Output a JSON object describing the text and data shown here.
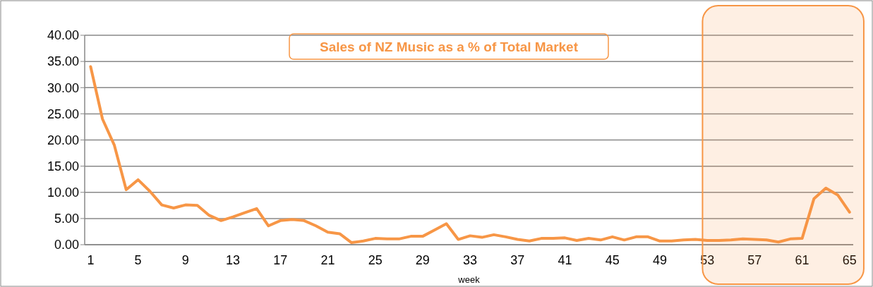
{
  "chart_data": {
    "type": "line",
    "title": "Sales of NZ Music as a % of Total Market",
    "xlabel": "week",
    "x": [
      1,
      2,
      3,
      4,
      5,
      6,
      7,
      8,
      9,
      10,
      11,
      12,
      13,
      14,
      15,
      16,
      17,
      18,
      19,
      20,
      21,
      22,
      23,
      24,
      25,
      26,
      27,
      28,
      29,
      30,
      31,
      32,
      33,
      34,
      35,
      36,
      37,
      38,
      39,
      40,
      41,
      42,
      43,
      44,
      45,
      46,
      47,
      48,
      49,
      50,
      51,
      52,
      53,
      54,
      55,
      56,
      57,
      58,
      59,
      60,
      61,
      62,
      63,
      64,
      65
    ],
    "series": [
      {
        "color": "#f79646",
        "values": [
          34,
          24,
          19,
          10.5,
          12.4,
          10.2,
          7.6,
          7,
          7.6,
          7.5,
          5.6,
          4.6,
          5.3,
          6.1,
          6.9,
          3.6,
          4.6,
          4.8,
          4.6,
          3.6,
          2.4,
          2.1,
          0.4,
          0.7,
          1.2,
          1.1,
          1.1,
          1.6,
          1.6,
          2.8,
          4.0,
          1.0,
          1.7,
          1.4,
          1.9,
          1.5,
          1.0,
          0.7,
          1.2,
          1.2,
          1.3,
          0.8,
          1.2,
          0.9,
          1.5,
          0.9,
          1.5,
          1.5,
          0.7,
          0.7,
          0.9,
          1.0,
          0.8,
          0.8,
          0.9,
          1.1,
          1.0,
          0.9,
          0.5,
          1.1,
          1.2,
          8.8,
          10.8,
          9.5,
          6.2
        ]
      }
    ],
    "xlim": [
      0.5,
      66.5
    ],
    "xticks": [
      1,
      5,
      9,
      13,
      17,
      21,
      25,
      29,
      33,
      37,
      41,
      45,
      49,
      53,
      57,
      61,
      65
    ],
    "ylim": [
      0,
      40
    ],
    "yticks": [
      {
        "value": 0,
        "label": "0.00"
      },
      {
        "value": 5,
        "label": "5.00"
      },
      {
        "value": 10,
        "label": "10.00"
      },
      {
        "value": 15,
        "label": "15.00"
      },
      {
        "value": 20,
        "label": "20.00"
      },
      {
        "value": 25,
        "label": "25.00"
      },
      {
        "value": 30,
        "label": "30.00"
      },
      {
        "value": 35,
        "label": "35.00"
      },
      {
        "value": 40,
        "label": "40.00"
      }
    ],
    "grid": "y",
    "marker": "none",
    "line_style": "solid",
    "bands": [
      {
        "axis": "x",
        "from": 52.6,
        "to": 66.2,
        "color": "#f79646"
      }
    ]
  }
}
